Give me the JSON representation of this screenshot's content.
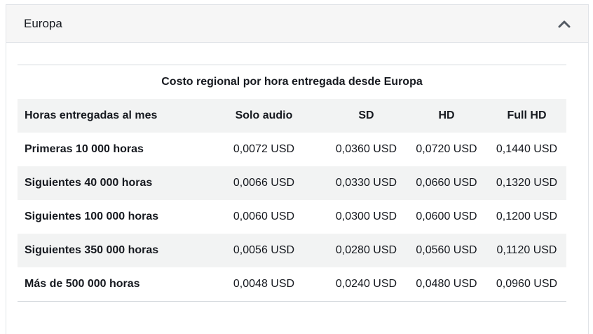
{
  "panel": {
    "title": "Europa",
    "toggle_icon": "chevron-up-icon"
  },
  "table": {
    "caption": "Costo regional por hora entregada desde Europa",
    "headers": [
      "Horas entregadas al mes",
      "Solo audio",
      "SD",
      "HD",
      "Full HD"
    ],
    "rows": [
      [
        "Primeras 10 000 horas",
        "0,0072 USD",
        "0,0360 USD",
        "0,0720 USD",
        "0,1440 USD"
      ],
      [
        "Siguientes 40 000 horas",
        "0,0066 USD",
        "0,0330 USD",
        "0,0660 USD",
        "0,1320 USD"
      ],
      [
        "Siguientes 100 000 horas",
        "0,0060 USD",
        "0,0300 USD",
        "0,0600 USD",
        "0,1200 USD"
      ],
      [
        "Siguientes 350 000 horas",
        "0,0056 USD",
        "0,0280 USD",
        "0,0560 USD",
        "0,1120 USD"
      ],
      [
        "Más de 500 000 horas",
        "0,0048 USD",
        "0,0240 USD",
        "0,0480 USD",
        "0,0960 USD"
      ]
    ]
  }
}
